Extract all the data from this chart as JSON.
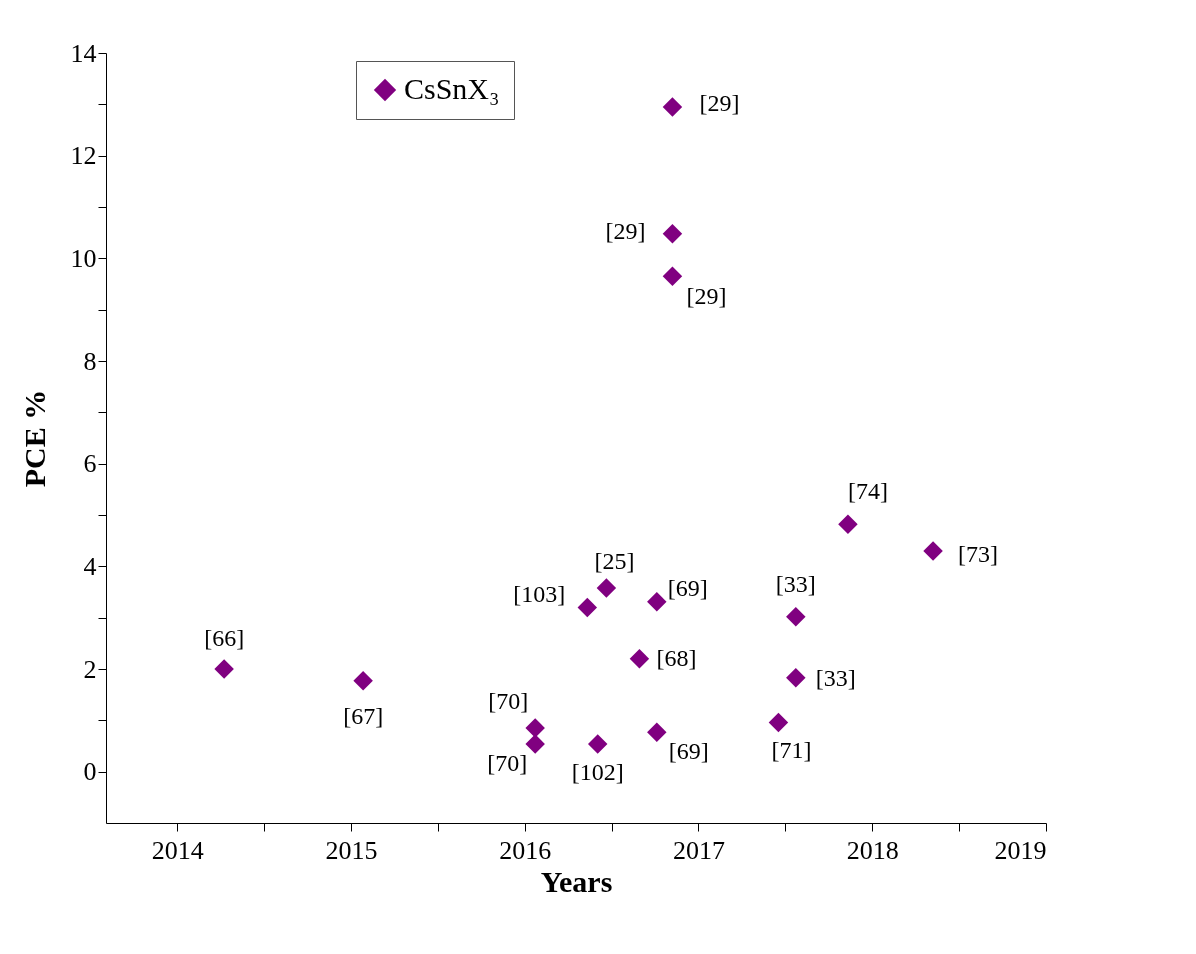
{
  "chart_data": {
    "type": "scatter",
    "xlabel": "Years",
    "ylabel": "PCE %",
    "xlim": [
      2013.59,
      2019
    ],
    "ylim": [
      -1,
      14
    ],
    "xticks": [
      2014,
      {
        "value": 2014.5,
        "label": null
      },
      2015,
      {
        "value": 2015.5,
        "label": null
      },
      2016,
      {
        "value": 2016.5,
        "label": null
      },
      2017,
      {
        "value": 2017.5,
        "label": null
      },
      2018,
      {
        "value": 2018.5,
        "label": null
      },
      2019
    ],
    "yticks": [
      0,
      {
        "value": 1,
        "label": null
      },
      2,
      {
        "value": 3,
        "label": null
      },
      4,
      {
        "value": 5,
        "label": null
      },
      6,
      {
        "value": 7,
        "label": null
      },
      8,
      {
        "value": 9,
        "label": null
      },
      10,
      {
        "value": 11,
        "label": null
      },
      12,
      {
        "value": 13,
        "label": null
      },
      14
    ],
    "series": [
      {
        "name": "CsSnX₃",
        "color": "#800080",
        "marker": "diamond",
        "x": [
          2014.27,
          2015.07,
          2016.06,
          2016.06,
          2016.42,
          2016.36,
          2016.47,
          2016.76,
          2016.66,
          2016.76,
          2016.85,
          2016.85,
          2016.85,
          2017.46,
          2017.56,
          2017.56,
          2017.86,
          2018.35
        ],
        "values": [
          2.0,
          1.77,
          0.85,
          0.54,
          0.54,
          3.2,
          3.58,
          3.31,
          2.2,
          0.77,
          12.95,
          10.48,
          9.65,
          0.96,
          3.02,
          1.83,
          4.82,
          4.3
        ]
      }
    ],
    "annotations": [
      {
        "text": "[66]",
        "x": 2014.27,
        "y": 2.0
      },
      {
        "text": "[67]",
        "x": 2015.07,
        "y": 1.77
      },
      {
        "text": "[70]",
        "x": 2016.06,
        "y": 0.85
      },
      {
        "text": "[70]",
        "x": 2016.06,
        "y": 0.54
      },
      {
        "text": "[102]",
        "x": 2016.42,
        "y": 0.54
      },
      {
        "text": "[103]",
        "x": 2016.36,
        "y": 3.2
      },
      {
        "text": "[25]",
        "x": 2016.47,
        "y": 3.58
      },
      {
        "text": "[69]",
        "x": 2016.76,
        "y": 3.31
      },
      {
        "text": "[68]",
        "x": 2016.66,
        "y": 2.2
      },
      {
        "text": "[69]",
        "x": 2016.76,
        "y": 0.77
      },
      {
        "text": "[29]",
        "x": 2016.85,
        "y": 12.95
      },
      {
        "text": "[29]",
        "x": 2016.85,
        "y": 10.48
      },
      {
        "text": "[29]",
        "x": 2016.85,
        "y": 9.65
      },
      {
        "text": "[71]",
        "x": 2017.46,
        "y": 0.96
      },
      {
        "text": "[33]",
        "x": 2017.56,
        "y": 3.02
      },
      {
        "text": "[33]",
        "x": 2017.56,
        "y": 1.83
      },
      {
        "text": "[74]",
        "x": 2017.86,
        "y": 4.82
      },
      {
        "text": "[73]",
        "x": 2018.35,
        "y": 4.3
      }
    ],
    "legend": "top left",
    "grid": false
  }
}
